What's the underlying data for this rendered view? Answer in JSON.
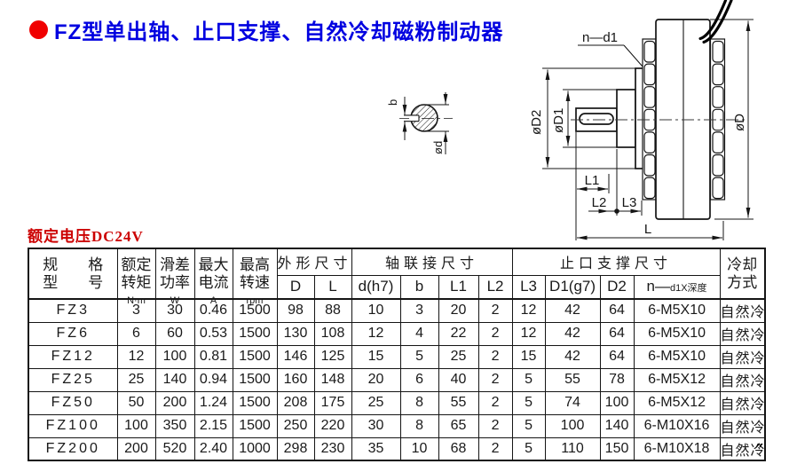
{
  "title": {
    "text": "FZ型单出轴、止口支撑、自然冷却磁粉制动器"
  },
  "subtitle": "额定电压DC24V",
  "colors": {
    "title_blue": "#0000e0",
    "bullet_red": "#f00000",
    "subtitle_red": "#cc0000",
    "line_black": "#151515"
  },
  "drawing": {
    "side_labels": {
      "n_d1": "n—d1",
      "dia_d2": "øD2",
      "dia_d1": "øD1",
      "dia_d": "øD",
      "l1": "L1",
      "l2": "L2",
      "l3": "L3",
      "l": "L"
    },
    "section_labels": {
      "b": "b",
      "dia_d": "ød"
    }
  },
  "table": {
    "headers": {
      "spec_line1": "规　　格",
      "spec_line2": "型　　号",
      "rated_torque": [
        "额定",
        "转矩"
      ],
      "rated_torque_unit": "N·m",
      "slip_power": [
        "滑差",
        "功率"
      ],
      "slip_power_unit": "W",
      "max_current": [
        "最大",
        "电流"
      ],
      "max_current_unit": "A",
      "max_speed": [
        "最高",
        "转速"
      ],
      "max_speed_unit": "rpm",
      "outline_group": "外形尺寸",
      "shaft_group": "轴联接尺寸",
      "support_group": "止口支撑尺寸",
      "cooling_line1": "冷却",
      "cooling_line2": "方式",
      "sub": [
        "D",
        "L",
        "d(h7)",
        "b",
        "L1",
        "L2",
        "L3",
        "D1(g7)",
        "D2"
      ],
      "nd_prefix": "n—",
      "nd_small": "d1X深度"
    },
    "rows": [
      [
        "FZ3",
        "3",
        "30",
        "0.46",
        "1500",
        "98",
        "88",
        "10",
        "3",
        "20",
        "2",
        "12",
        "42",
        "64",
        "6-M5X10",
        "自然冷"
      ],
      [
        "FZ6",
        "6",
        "60",
        "0.53",
        "1500",
        "130",
        "108",
        "12",
        "4",
        "22",
        "2",
        "12",
        "42",
        "64",
        "6-M5X10",
        "自然冷"
      ],
      [
        "FZ12",
        "12",
        "100",
        "0.81",
        "1500",
        "146",
        "125",
        "15",
        "5",
        "25",
        "2",
        "15",
        "42",
        "64",
        "6-M5X10",
        "自然冷"
      ],
      [
        "FZ25",
        "25",
        "140",
        "0.94",
        "1500",
        "160",
        "148",
        "20",
        "6",
        "40",
        "2",
        "5",
        "55",
        "78",
        "6-M5X12",
        "自然冷"
      ],
      [
        "FZ50",
        "50",
        "200",
        "1.24",
        "1500",
        "208",
        "175",
        "25",
        "8",
        "55",
        "2",
        "5",
        "74",
        "100",
        "6-M5X12",
        "自然冷"
      ],
      [
        "FZ100",
        "100",
        "350",
        "2.15",
        "1500",
        "250",
        "220",
        "30",
        "8",
        "65",
        "2",
        "5",
        "100",
        "140",
        "6-M10X16",
        "自然冷"
      ],
      [
        "FZ200",
        "200",
        "520",
        "2.40",
        "1000",
        "298",
        "230",
        "35",
        "10",
        "68",
        "2",
        "5",
        "110",
        "150",
        "6-M10X18",
        "自然冷"
      ]
    ]
  },
  "stray_mark": "″"
}
